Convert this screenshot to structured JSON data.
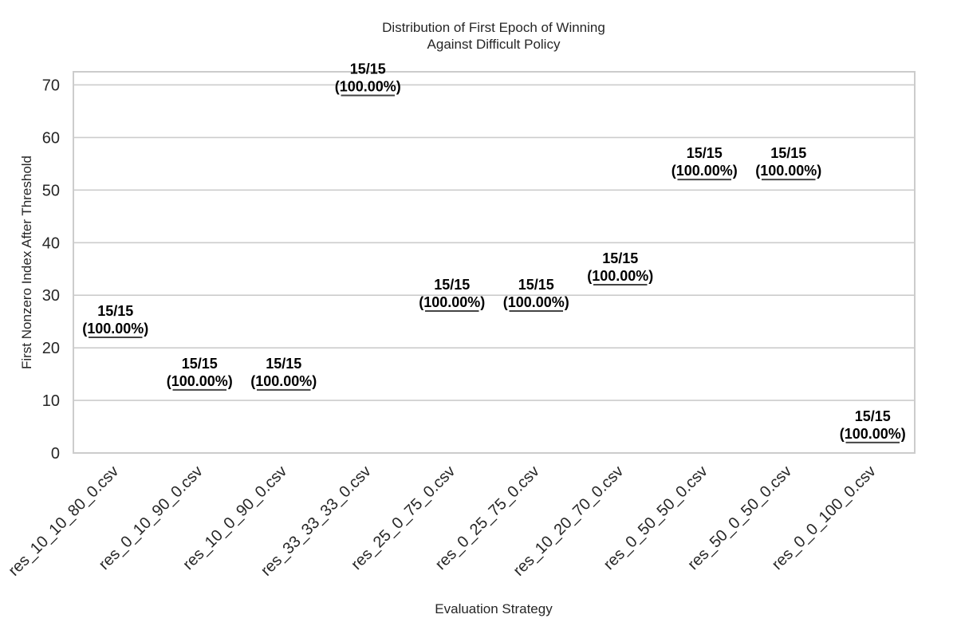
{
  "chart_data": {
    "type": "box",
    "title": "Distribution of First Epoch of Winning\nAgainst Difficult Policy",
    "xlabel": "Evaluation Strategy",
    "ylabel": "First Nonzero Index After Threshold",
    "ylim": [
      0,
      72.5
    ],
    "yticks": [
      0,
      10,
      20,
      30,
      40,
      50,
      60,
      70
    ],
    "grid": true,
    "categories": [
      "res_10_10_80_0.csv",
      "res_0_10_90_0.csv",
      "res_10_0_90_0.csv",
      "res_33_33_33_0.csv",
      "res_25_0_75_0.csv",
      "res_0_25_75_0.csv",
      "res_10_20_70_0.csv",
      "res_0_50_50_0.csv",
      "res_50_0_50_0.csv",
      "res_0_0_100_0.csv"
    ],
    "values": [
      22,
      12,
      12,
      68,
      27,
      27,
      32,
      52,
      52,
      2
    ],
    "annotations": [
      "15/15\n(100.00%)",
      "15/15\n(100.00%)",
      "15/15\n(100.00%)",
      "15/15\n(100.00%)",
      "15/15\n(100.00%)",
      "15/15\n(100.00%)",
      "15/15\n(100.00%)",
      "15/15\n(100.00%)",
      "15/15\n(100.00%)",
      "15/15\n(100.00%)"
    ],
    "colors": {
      "grid": "#cccccc",
      "spine": "#cccccc",
      "median": "#444444",
      "annotation": "#000000",
      "text": "#262626"
    }
  }
}
